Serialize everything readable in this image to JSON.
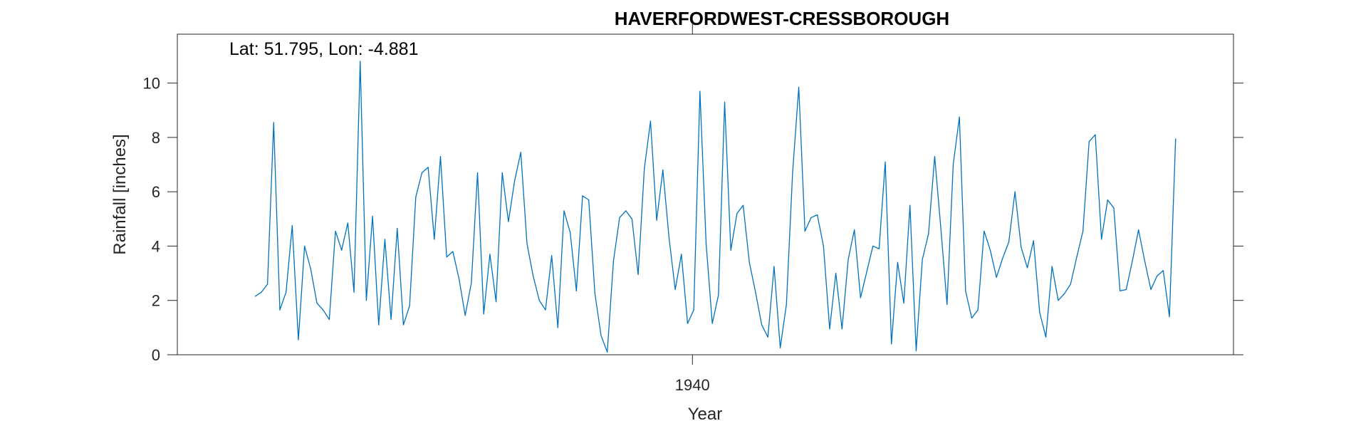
{
  "chart_data": {
    "type": "line",
    "title": "HAVERFORDWEST-CRESSBOROUGH",
    "annotation": "Lat: 51.795, Lon: -4.881",
    "xlabel": "Year",
    "ylabel": "Rainfall [inches]",
    "xlim": [
      1926.1,
      1954.6
    ],
    "ylim": [
      0,
      11.8
    ],
    "x_ticks": [
      1940
    ],
    "x_tick_labels": [
      "1940"
    ],
    "y_ticks": [
      0,
      2,
      4,
      6,
      8,
      10
    ],
    "y_tick_labels": [
      "0",
      "2",
      "4",
      "6",
      "8",
      "10"
    ],
    "grid": false,
    "line_color": "#0072bd",
    "series": [
      {
        "x_start": 1928.2,
        "x_step": 0.1667,
        "values": [
          2.15,
          2.3,
          2.6,
          8.55,
          1.65,
          2.3,
          4.75,
          0.55,
          4.0,
          3.15,
          1.9,
          1.65,
          1.3,
          4.55,
          3.85,
          4.85,
          2.3,
          10.8,
          2.0,
          5.1,
          1.1,
          4.25,
          1.3,
          4.65,
          1.1,
          1.8,
          5.8,
          6.7,
          6.9,
          4.25,
          7.3,
          3.6,
          3.8,
          2.8,
          1.45,
          2.65,
          6.7,
          1.5,
          3.7,
          1.95,
          6.7,
          4.9,
          6.4,
          7.45,
          4.1,
          2.9,
          2.0,
          1.65,
          3.65,
          1.0,
          5.3,
          4.5,
          2.35,
          5.85,
          5.7,
          2.25,
          0.7,
          0.1,
          3.45,
          5.05,
          5.3,
          5.0,
          2.95,
          6.85,
          8.6,
          4.95,
          6.8,
          4.3,
          2.4,
          3.7,
          1.15,
          1.65,
          9.7,
          4.1,
          1.15,
          2.2,
          9.3,
          3.85,
          5.2,
          5.5,
          3.4,
          2.3,
          1.1,
          0.65,
          3.25,
          0.25,
          1.85,
          6.7,
          9.85,
          4.55,
          5.05,
          5.15,
          4.0,
          0.95,
          3.0,
          0.95,
          3.5,
          4.6,
          2.1,
          3.05,
          4.0,
          3.9,
          7.1,
          0.4,
          3.4,
          1.9,
          5.5,
          0.15,
          3.5,
          4.45,
          7.3,
          4.65,
          1.85,
          7.0,
          8.75,
          2.35,
          1.35,
          1.65,
          4.55,
          3.85,
          2.85,
          3.55,
          4.15,
          6.0,
          3.95,
          3.2,
          4.2,
          1.55,
          0.65,
          3.25,
          2.0,
          2.25,
          2.6,
          3.6,
          4.55,
          7.85,
          8.1,
          4.25,
          5.7,
          5.4,
          2.35,
          2.4,
          3.45,
          4.6,
          3.45,
          2.4,
          2.9,
          3.1,
          1.4,
          7.95
        ]
      }
    ]
  }
}
